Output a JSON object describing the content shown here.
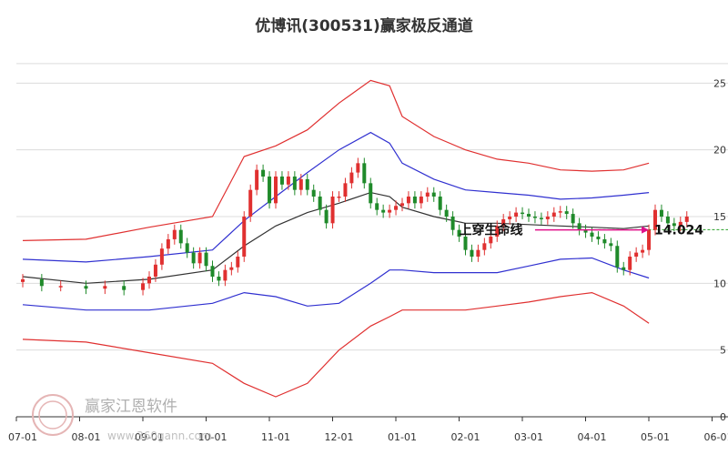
{
  "chart_data": {
    "type": "line",
    "title": "优博讯(300531)赢家极反通道",
    "x_ticks": [
      "07-01",
      "08-01",
      "09-01",
      "10-01",
      "11-01",
      "12-01",
      "01-01",
      "02-01",
      "03-01",
      "04-01",
      "05-01",
      "06-01"
    ],
    "y_ticks": [
      0,
      5,
      10,
      15,
      20,
      25
    ],
    "ylim": [
      0,
      27
    ],
    "grid": "horizontal",
    "series": [
      {
        "color": "#e03030",
        "values": [
          [
            0,
            13.2
          ],
          [
            1,
            13.3
          ],
          [
            2,
            14.2
          ],
          [
            3,
            15.0
          ],
          [
            3.5,
            19.5
          ],
          [
            4,
            20.3
          ],
          [
            4.5,
            21.5
          ],
          [
            5,
            23.5
          ],
          [
            5.5,
            25.2
          ],
          [
            5.8,
            24.8
          ],
          [
            6,
            22.5
          ],
          [
            6.5,
            21.0
          ],
          [
            7,
            20.0
          ],
          [
            7.5,
            19.3
          ],
          [
            8,
            19.0
          ],
          [
            8.5,
            18.5
          ],
          [
            9,
            18.4
          ],
          [
            9.5,
            18.5
          ],
          [
            9.9,
            19.0
          ]
        ]
      },
      {
        "color": "#3030d0",
        "values": [
          [
            0,
            11.8
          ],
          [
            1,
            11.6
          ],
          [
            2,
            12.0
          ],
          [
            3,
            12.5
          ],
          [
            3.5,
            14.7
          ],
          [
            4,
            16.5
          ],
          [
            4.5,
            18.3
          ],
          [
            5,
            20.0
          ],
          [
            5.5,
            21.3
          ],
          [
            5.8,
            20.5
          ],
          [
            6,
            19.0
          ],
          [
            6.5,
            17.8
          ],
          [
            7,
            17.0
          ],
          [
            7.5,
            16.8
          ],
          [
            8,
            16.6
          ],
          [
            8.5,
            16.3
          ],
          [
            9,
            16.4
          ],
          [
            9.5,
            16.6
          ],
          [
            9.9,
            16.8
          ]
        ]
      },
      {
        "color": "#333333",
        "values": [
          [
            0,
            10.5
          ],
          [
            1,
            10.0
          ],
          [
            2,
            10.3
          ],
          [
            3,
            11.0
          ],
          [
            3.5,
            12.8
          ],
          [
            4,
            14.3
          ],
          [
            4.5,
            15.3
          ],
          [
            5,
            16.0
          ],
          [
            5.5,
            16.8
          ],
          [
            5.8,
            16.5
          ],
          [
            6,
            15.7
          ],
          [
            6.5,
            15.0
          ],
          [
            7,
            14.5
          ],
          [
            7.5,
            14.5
          ],
          [
            8,
            14.4
          ],
          [
            8.5,
            14.3
          ],
          [
            9,
            14.2
          ],
          [
            9.5,
            14.1
          ],
          [
            9.9,
            14.3
          ]
        ]
      },
      {
        "color": "#3030d0",
        "values": [
          [
            0,
            8.4
          ],
          [
            1,
            8.0
          ],
          [
            2,
            8.0
          ],
          [
            3,
            8.5
          ],
          [
            3.5,
            9.3
          ],
          [
            4,
            9.0
          ],
          [
            4.5,
            8.3
          ],
          [
            5,
            8.5
          ],
          [
            5.5,
            10.0
          ],
          [
            5.8,
            11.0
          ],
          [
            6,
            11.0
          ],
          [
            6.5,
            10.8
          ],
          [
            7,
            10.8
          ],
          [
            7.5,
            10.8
          ],
          [
            8,
            11.3
          ],
          [
            8.5,
            11.8
          ],
          [
            9,
            11.9
          ],
          [
            9.5,
            11.0
          ],
          [
            9.9,
            10.4
          ]
        ]
      },
      {
        "color": "#e03030",
        "values": [
          [
            0,
            5.8
          ],
          [
            1,
            5.6
          ],
          [
            2,
            4.8
          ],
          [
            3,
            4.0
          ],
          [
            3.5,
            2.5
          ],
          [
            4,
            1.5
          ],
          [
            4.5,
            2.5
          ],
          [
            5,
            5.0
          ],
          [
            5.5,
            6.8
          ],
          [
            5.8,
            7.5
          ],
          [
            6,
            8.0
          ],
          [
            6.5,
            8.0
          ],
          [
            7,
            8.0
          ],
          [
            7.5,
            8.3
          ],
          [
            8,
            8.6
          ],
          [
            8.5,
            9.0
          ],
          [
            9,
            9.3
          ],
          [
            9.5,
            8.3
          ],
          [
            9.9,
            7.0
          ]
        ]
      }
    ],
    "price": [
      [
        0,
        10.3
      ],
      [
        0.3,
        9.8
      ],
      [
        0.6,
        9.8
      ],
      [
        1,
        9.6
      ],
      [
        1.3,
        9.8
      ],
      [
        1.6,
        9.5
      ],
      [
        1.9,
        10.0
      ],
      [
        2,
        10.5
      ],
      [
        2.1,
        11.4
      ],
      [
        2.2,
        12.6
      ],
      [
        2.3,
        13.3
      ],
      [
        2.4,
        14.0
      ],
      [
        2.5,
        13.0
      ],
      [
        2.6,
        12.3
      ],
      [
        2.7,
        11.5
      ],
      [
        2.8,
        12.3
      ],
      [
        2.9,
        11.3
      ],
      [
        3,
        10.5
      ],
      [
        3.1,
        10.2
      ],
      [
        3.2,
        11.0
      ],
      [
        3.3,
        11.2
      ],
      [
        3.4,
        12.0
      ],
      [
        3.5,
        15.0
      ],
      [
        3.6,
        17.0
      ],
      [
        3.7,
        18.5
      ],
      [
        3.8,
        18.0
      ],
      [
        3.9,
        16.0
      ],
      [
        4,
        18.0
      ],
      [
        4.1,
        17.4
      ],
      [
        4.2,
        18.0
      ],
      [
        4.3,
        17.0
      ],
      [
        4.4,
        17.8
      ],
      [
        4.5,
        17.0
      ],
      [
        4.6,
        16.5
      ],
      [
        4.7,
        15.5
      ],
      [
        4.8,
        14.5
      ],
      [
        4.9,
        16.5
      ],
      [
        5,
        16.5
      ],
      [
        5.1,
        17.5
      ],
      [
        5.2,
        18.3
      ],
      [
        5.3,
        19.0
      ],
      [
        5.4,
        17.5
      ],
      [
        5.5,
        16.0
      ],
      [
        5.6,
        15.5
      ],
      [
        5.7,
        15.3
      ],
      [
        5.8,
        15.5
      ],
      [
        5.9,
        15.8
      ],
      [
        6,
        16.0
      ],
      [
        6.1,
        16.5
      ],
      [
        6.2,
        16.0
      ],
      [
        6.3,
        16.5
      ],
      [
        6.4,
        16.8
      ],
      [
        6.5,
        16.5
      ],
      [
        6.6,
        15.5
      ],
      [
        6.7,
        15.0
      ],
      [
        6.8,
        14.0
      ],
      [
        6.9,
        13.5
      ],
      [
        7,
        12.5
      ],
      [
        7.1,
        12.0
      ],
      [
        7.2,
        12.5
      ],
      [
        7.3,
        13.0
      ],
      [
        7.4,
        13.5
      ],
      [
        7.5,
        14.3
      ],
      [
        7.6,
        14.8
      ],
      [
        7.7,
        15.0
      ],
      [
        7.8,
        15.3
      ],
      [
        7.9,
        15.2
      ],
      [
        8,
        15.0
      ],
      [
        8.1,
        14.9
      ],
      [
        8.2,
        14.8
      ],
      [
        8.3,
        15.0
      ],
      [
        8.4,
        15.3
      ],
      [
        8.5,
        15.4
      ],
      [
        8.6,
        15.2
      ],
      [
        8.7,
        14.5
      ],
      [
        8.8,
        14.0
      ],
      [
        8.9,
        13.8
      ],
      [
        9,
        13.5
      ],
      [
        9.1,
        13.3
      ],
      [
        9.2,
        13.0
      ],
      [
        9.3,
        12.8
      ],
      [
        9.4,
        11.2
      ],
      [
        9.5,
        11.0
      ],
      [
        9.6,
        12.0
      ],
      [
        9.7,
        12.3
      ],
      [
        9.8,
        12.5
      ],
      [
        9.9,
        14.0
      ],
      [
        10,
        15.5
      ],
      [
        10.1,
        15.0
      ],
      [
        10.2,
        14.5
      ],
      [
        10.3,
        14.3
      ],
      [
        10.4,
        14.6
      ],
      [
        10.5,
        15.0
      ]
    ],
    "level_line": {
      "value": 14.024,
      "color": "#27a027"
    },
    "annotations": {
      "marker_label": "上穿生命线",
      "level_label": "14.024"
    },
    "marker_at": [
      9.9,
      14.0
    ]
  },
  "watermark": {
    "brand": "赢家江恩软件",
    "url": "www.360gann.com"
  },
  "colors": {
    "up": "#e03030",
    "down": "#1f8a2a",
    "arrow": "#e0108a"
  }
}
